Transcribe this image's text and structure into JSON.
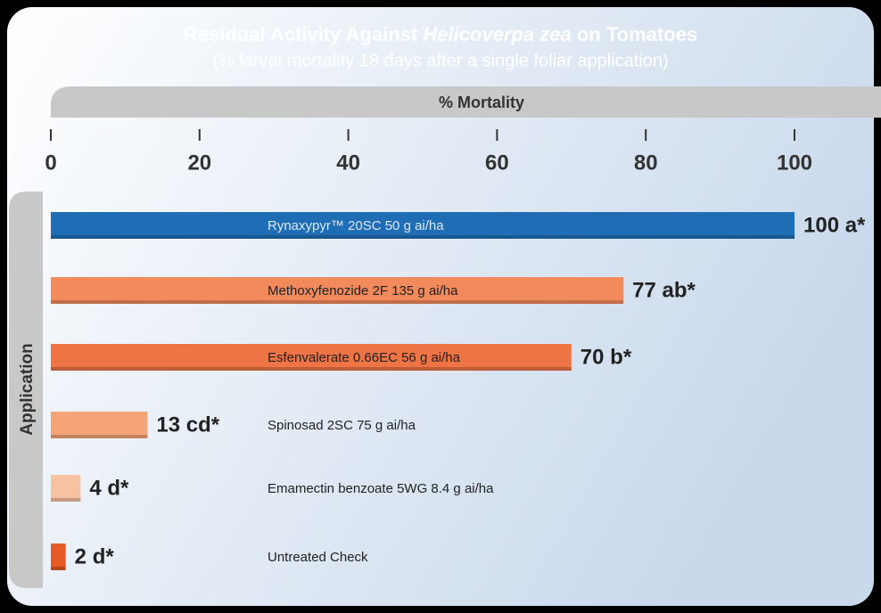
{
  "chart_data": {
    "type": "bar",
    "orientation": "horizontal",
    "title": [
      "Residual Activity Against ",
      "Helicoverpa zea",
      " on Tomatoes"
    ],
    "subtitle": "(% larval mortality 18 days after a single foliar application)",
    "x_label": "% Mortality",
    "y_label": "Application",
    "categories": [
      "Rynaxypyr™ 20SC 50 g ai/ha",
      "Methoxyfenozide 2F 135 g ai/ha",
      "Esfenvalerate 0.66EC 56 g ai/ha",
      "Spinosad 2SC 75 g ai/ha",
      "Emamectin benzoate 5WG 8.4 g ai/ha",
      "Untreated Check"
    ],
    "values": [
      100,
      77,
      70,
      13,
      4,
      2
    ],
    "value_labels": [
      "100 a*",
      "77 ab*",
      "70 b*",
      "13 cd*",
      "4 d*",
      "2 d*"
    ],
    "colors": [
      "#1f6db5",
      "#f28a5c",
      "#ee7446",
      "#f4a477",
      "#f6c2a2",
      "#e55a26"
    ],
    "xlim": [
      0,
      100
    ],
    "xticks": [
      0,
      20,
      40,
      60,
      80,
      100
    ]
  }
}
